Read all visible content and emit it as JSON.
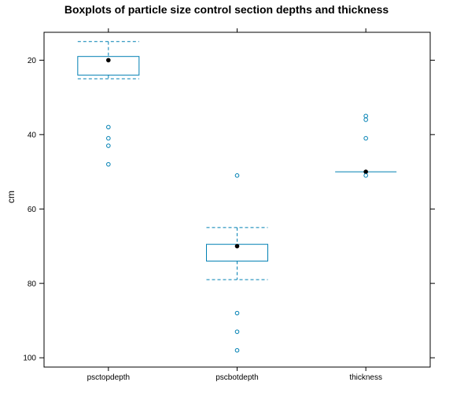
{
  "chart_data": {
    "type": "boxplot",
    "title": "Boxplots of particle size control section depths and thickness",
    "xlabel": "",
    "ylabel": "cm",
    "y_axis_reversed": true,
    "ylim": [
      12.5,
      102.5
    ],
    "yticks": [
      20,
      40,
      60,
      80,
      100
    ],
    "ytick_labels": [
      "20",
      "40",
      "60",
      "80",
      "100"
    ],
    "grid": false,
    "legend": "none",
    "colors": {
      "box": "#0080b3",
      "median_point": "#000000",
      "outlier": "#0080b3",
      "frame": "#000000"
    },
    "categories": [
      "psctopdepth",
      "pscbotdepth",
      "thickness"
    ],
    "boxes": [
      {
        "name": "psctopdepth",
        "whisker_low": 15,
        "q1": 19,
        "median": 20,
        "q3": 24,
        "whisker_high": 25,
        "outliers": [
          38,
          41,
          43,
          48
        ]
      },
      {
        "name": "pscbotdepth",
        "whisker_low": 65,
        "q1": 69.5,
        "median": 70,
        "q3": 74,
        "whisker_high": 79,
        "outliers": [
          51,
          88,
          93,
          98
        ]
      },
      {
        "name": "thickness",
        "whisker_low": 50,
        "q1": 50,
        "median": 50,
        "q3": 50,
        "whisker_high": 50,
        "outliers": [
          35,
          36,
          41,
          51
        ]
      }
    ]
  }
}
